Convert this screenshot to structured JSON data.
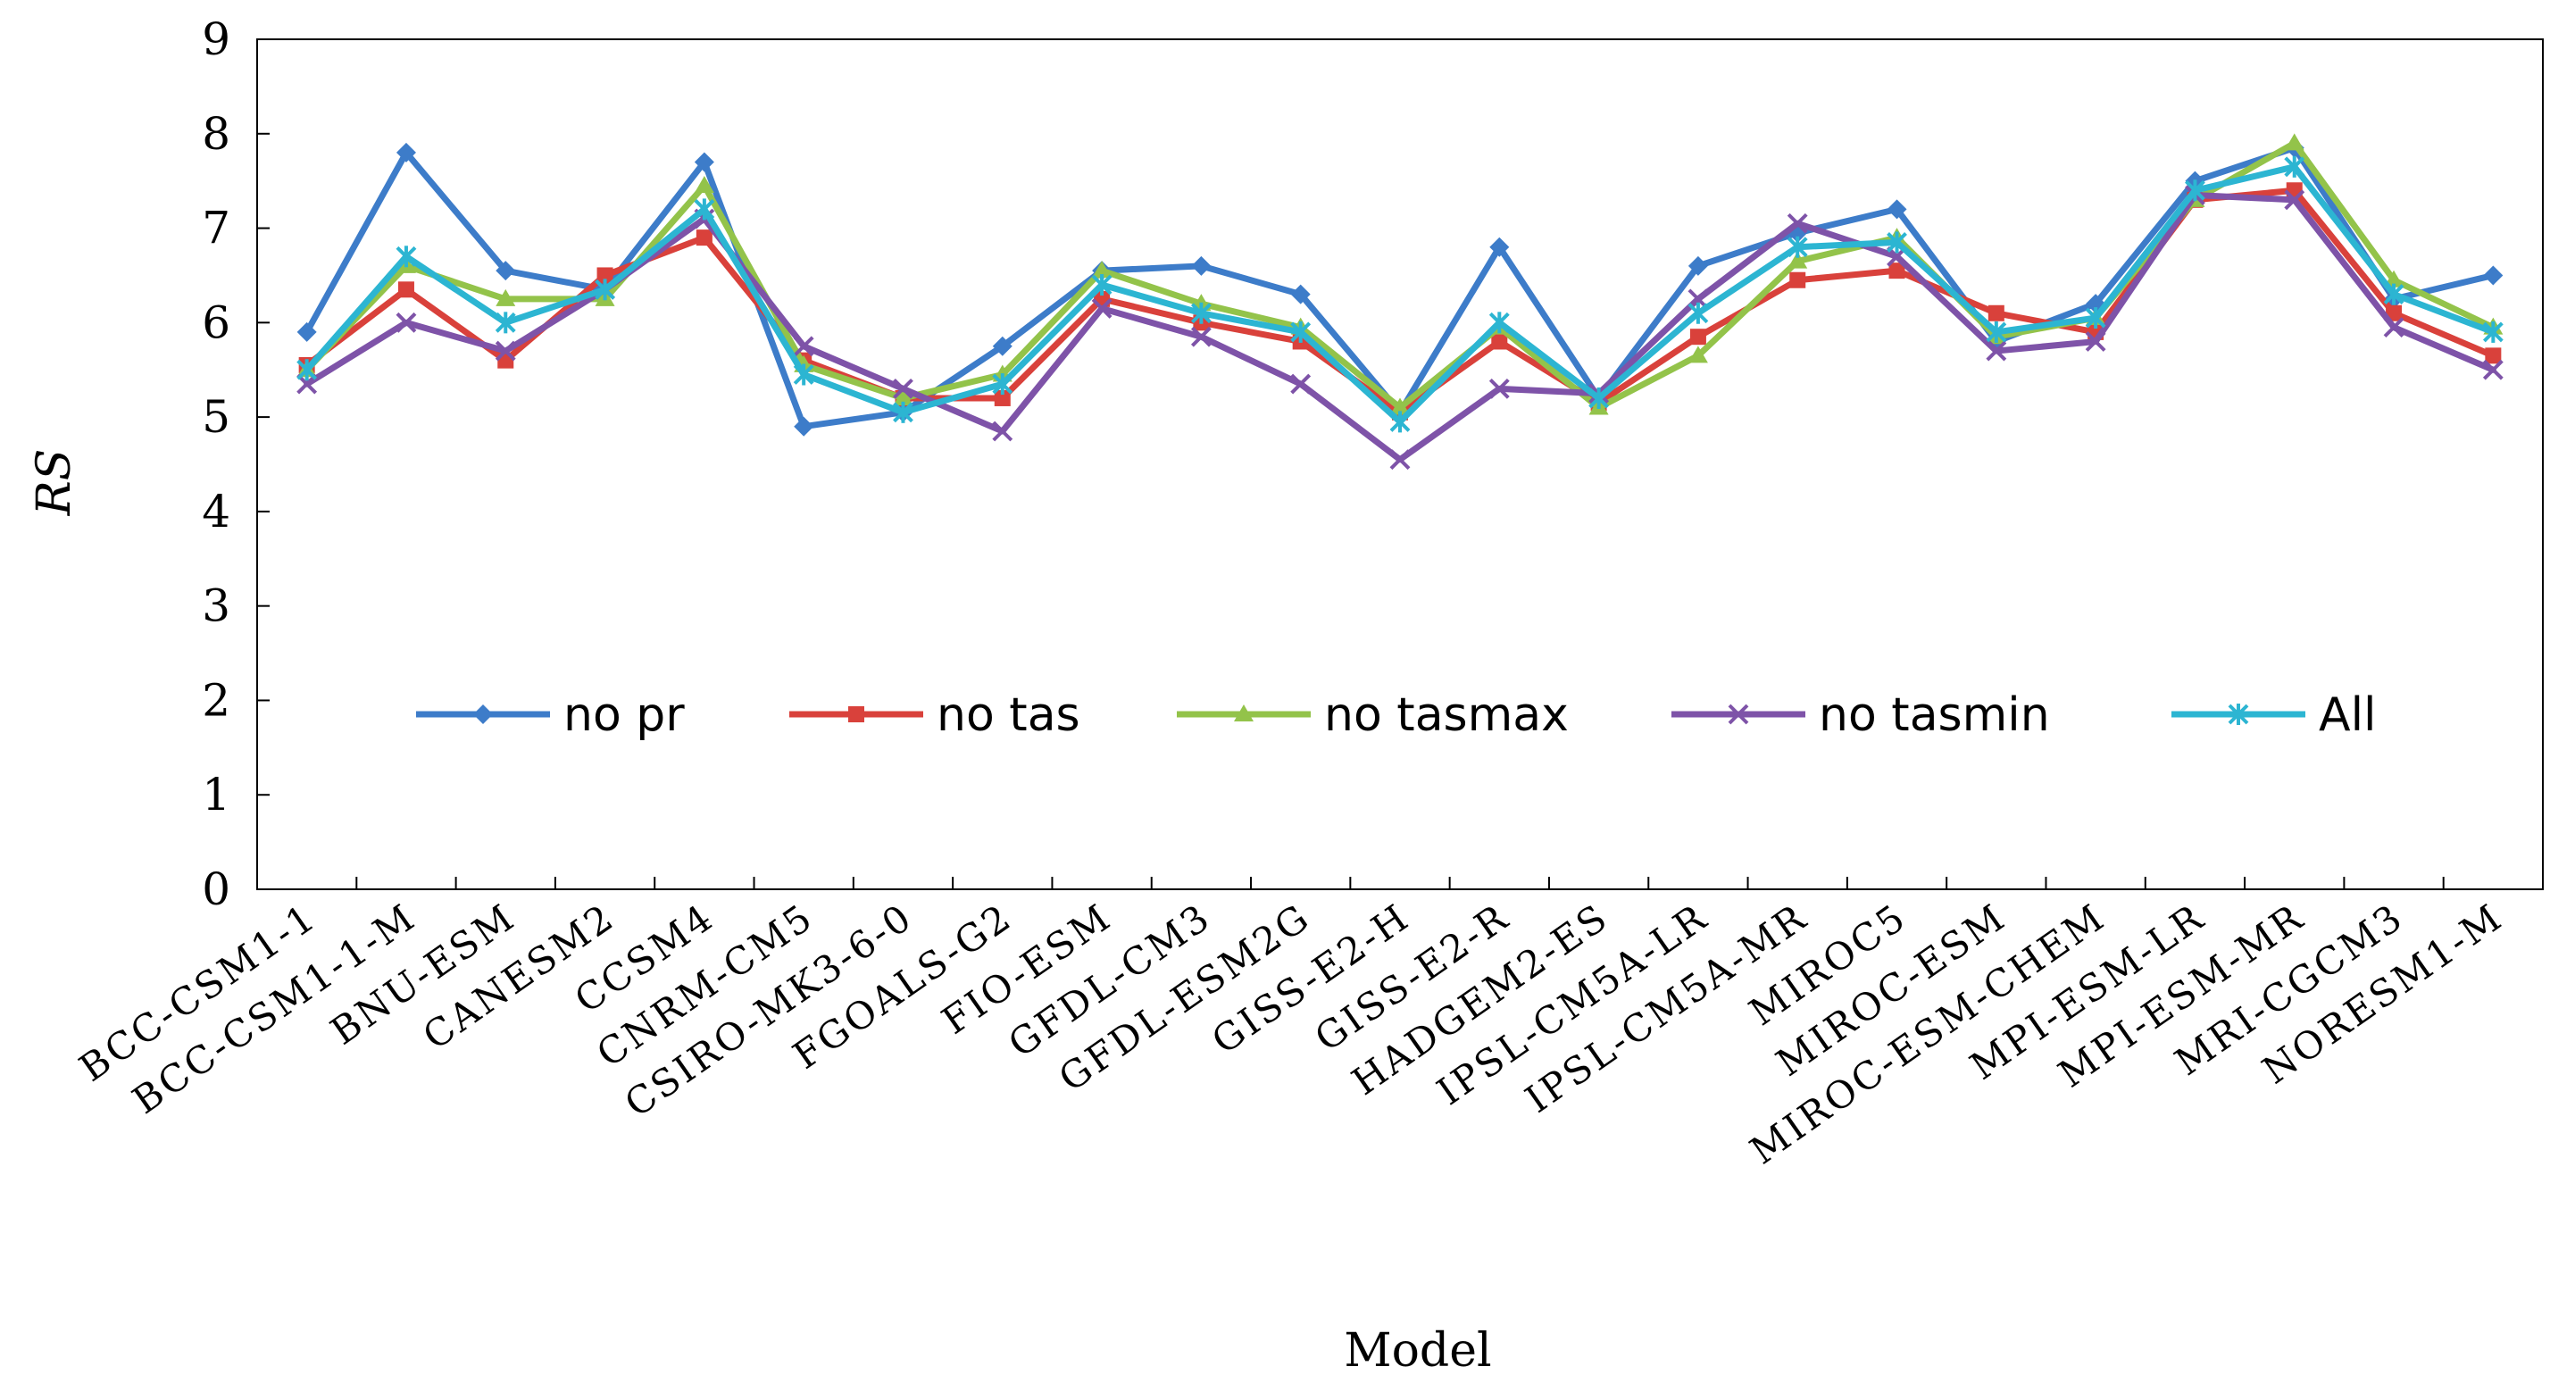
{
  "chart_data": {
    "type": "line",
    "title": "",
    "xlabel": "Model",
    "ylabel": "RS",
    "ylim": [
      0,
      9
    ],
    "yticks": [
      0,
      1,
      2,
      3,
      4,
      5,
      6,
      7,
      8,
      9
    ],
    "legend_position": "inside-center",
    "categories": [
      "BCC-CSM1-1",
      "BCC-CSM1-1-M",
      "BNU-ESM",
      "CANESM2",
      "CCSM4",
      "CNRM-CM5",
      "CSIRO-MK3-6-0",
      "FGOALS-G2",
      "FIO-ESM",
      "GFDL-CM3",
      "GFDL-ESM2G",
      "GISS-E2-H",
      "GISS-E2-R",
      "HADGEM2-ES",
      "IPSL-CM5A-LR",
      "IPSL-CM5A-MR",
      "MIROC5",
      "MIROC-ESM",
      "MIROC-ESM-CHEM",
      "MPI-ESM-LR",
      "MPI-ESM-MR",
      "MRI-CGCM3",
      "NORESM1-M"
    ],
    "series": [
      {
        "name": "no pr",
        "color": "#3d7cc9",
        "marker": "diamond",
        "values": [
          5.9,
          7.8,
          6.55,
          6.35,
          7.7,
          4.9,
          5.05,
          5.75,
          6.55,
          6.6,
          6.3,
          5.05,
          6.8,
          5.2,
          6.6,
          6.95,
          7.2,
          5.8,
          6.2,
          7.5,
          7.85,
          6.25,
          6.5
        ]
      },
      {
        "name": "no tas",
        "color": "#d9413b",
        "marker": "square",
        "values": [
          5.55,
          6.35,
          5.6,
          6.5,
          6.9,
          5.6,
          5.2,
          5.2,
          6.25,
          6.0,
          5.8,
          5.05,
          5.8,
          5.15,
          5.85,
          6.45,
          6.55,
          6.1,
          5.9,
          7.3,
          7.4,
          6.1,
          5.65
        ]
      },
      {
        "name": "no tasmax",
        "color": "#93c34a",
        "marker": "triangle",
        "values": [
          5.5,
          6.6,
          6.25,
          6.25,
          7.45,
          5.55,
          5.2,
          5.45,
          6.55,
          6.2,
          5.95,
          5.1,
          5.95,
          5.1,
          5.65,
          6.65,
          6.9,
          5.85,
          6.05,
          7.3,
          7.9,
          6.45,
          5.95
        ]
      },
      {
        "name": "no tasmin",
        "color": "#7e53a8",
        "marker": "x",
        "values": [
          5.35,
          6.0,
          5.7,
          6.35,
          7.1,
          5.75,
          5.3,
          4.85,
          6.15,
          5.85,
          5.35,
          4.55,
          5.3,
          5.25,
          6.25,
          7.05,
          6.7,
          5.7,
          5.8,
          7.35,
          7.3,
          5.95,
          5.5
        ]
      },
      {
        "name": "All",
        "color": "#2cb5d2",
        "marker": "star",
        "values": [
          5.5,
          6.7,
          6.0,
          6.35,
          7.2,
          5.45,
          5.05,
          5.35,
          6.4,
          6.1,
          5.9,
          4.95,
          6.0,
          5.2,
          6.1,
          6.8,
          6.85,
          5.9,
          6.05,
          7.4,
          7.65,
          6.3,
          5.9
        ]
      }
    ]
  }
}
